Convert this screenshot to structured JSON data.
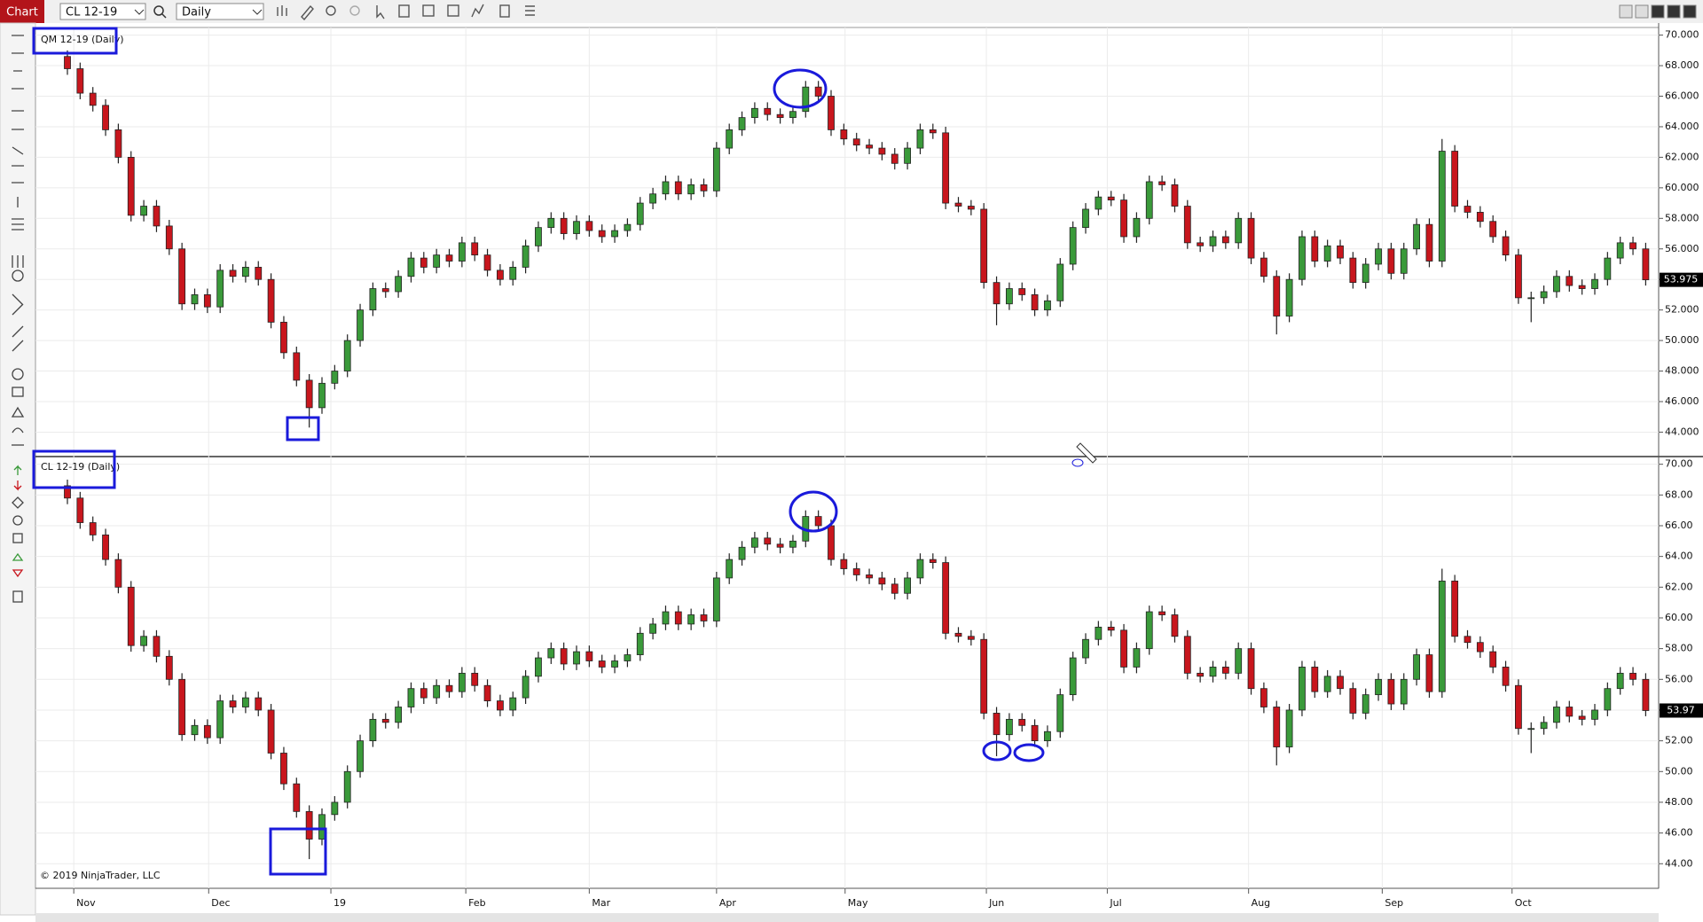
{
  "toolbar": {
    "tab": "Chart",
    "instrument": "CL 12-19",
    "period": "Daily"
  },
  "copyright": "© 2019 NinjaTrader, LLC",
  "chart_data": [
    {
      "type": "candlestick",
      "title": "QM 12-19 (Daily)",
      "up_color": "#3a9a3a",
      "down_color": "#c8161d",
      "grid": true,
      "ylim": [
        42.4,
        70.5
      ],
      "yticks": [
        {
          "value": 44,
          "label": "44.000"
        },
        {
          "value": 46,
          "label": "46.000"
        },
        {
          "value": 48,
          "label": "48.000"
        },
        {
          "value": 50,
          "label": "50.000"
        },
        {
          "value": 52,
          "label": "52.000"
        },
        {
          "value": 54,
          "label": "54.000"
        },
        {
          "value": 56,
          "label": "56.000"
        },
        {
          "value": 58,
          "label": "58.000"
        },
        {
          "value": 60,
          "label": "60.000"
        },
        {
          "value": 62,
          "label": "62.000"
        },
        {
          "value": 64,
          "label": "64.000"
        },
        {
          "value": 66,
          "label": "66.000"
        },
        {
          "value": 68,
          "label": "68.000"
        },
        {
          "value": 70,
          "label": "70.000"
        }
      ],
      "open": [
        68.6,
        67.8,
        66.2,
        65.4,
        63.8,
        62.0,
        58.2,
        58.8,
        57.5,
        56.0,
        52.4,
        53.0,
        52.2,
        54.6,
        54.2,
        54.8,
        54.0,
        51.2,
        49.2,
        47.4,
        45.6,
        47.2,
        48.0,
        50.0,
        52.0,
        53.4,
        53.2,
        54.2,
        55.4,
        54.8,
        55.6,
        55.2,
        56.4,
        55.6,
        54.6,
        54.0,
        54.8,
        56.2,
        57.4,
        58.0,
        57.0,
        57.8,
        57.2,
        56.8,
        57.2,
        57.6,
        59.0,
        59.6,
        60.4,
        59.6,
        60.2,
        59.8,
        62.6,
        63.8,
        64.6,
        65.2,
        64.8,
        64.6,
        65.0,
        66.6,
        66.0,
        63.8,
        63.2,
        62.8,
        62.6,
        62.2,
        61.6,
        62.6,
        63.8,
        63.6,
        59.0,
        58.8,
        58.6,
        53.8,
        52.4,
        53.4,
        53.0,
        52.0,
        52.6,
        55.0,
        57.4,
        58.6,
        59.4,
        59.2,
        56.8,
        58.0,
        60.4,
        60.2,
        58.8,
        56.4,
        56.2,
        56.8,
        56.4,
        58.0,
        55.4,
        54.2,
        51.6,
        54.0,
        56.8,
        55.2,
        56.2,
        55.4,
        53.8,
        55.0,
        56.0,
        54.4,
        56.0,
        57.6,
        55.2,
        62.4,
        58.8,
        58.4,
        57.8,
        56.8,
        55.6,
        52.8,
        52.8,
        53.2,
        54.2,
        53.6,
        53.4,
        54.0,
        55.4,
        56.4,
        56.0
      ],
      "high": [
        69.0,
        68.2,
        66.6,
        65.8,
        64.2,
        62.4,
        59.2,
        59.2,
        57.9,
        56.4,
        53.4,
        53.4,
        55.0,
        55.0,
        55.2,
        55.2,
        54.4,
        51.6,
        49.6,
        47.8,
        47.6,
        48.4,
        50.4,
        52.4,
        53.8,
        53.8,
        54.6,
        55.8,
        55.8,
        56.0,
        56.0,
        56.8,
        56.8,
        56.0,
        55.0,
        55.2,
        56.6,
        57.8,
        58.4,
        58.4,
        58.2,
        58.2,
        57.6,
        57.6,
        58.0,
        59.4,
        60.0,
        60.8,
        60.8,
        60.6,
        60.6,
        63.0,
        64.2,
        65.0,
        65.6,
        65.6,
        65.2,
        65.4,
        67.0,
        67.0,
        66.4,
        64.2,
        63.6,
        63.2,
        63.0,
        62.6,
        63.0,
        64.2,
        64.2,
        64.0,
        59.4,
        59.2,
        59.0,
        54.2,
        53.8,
        53.8,
        53.4,
        53.0,
        55.4,
        57.8,
        59.0,
        59.8,
        59.8,
        59.6,
        58.4,
        60.8,
        60.8,
        60.6,
        59.2,
        56.8,
        57.2,
        57.2,
        58.4,
        58.4,
        55.8,
        54.6,
        54.4,
        57.2,
        57.2,
        56.6,
        56.6,
        55.8,
        55.4,
        56.4,
        56.4,
        56.4,
        58.0,
        58.0,
        63.2,
        62.8,
        59.2,
        58.8,
        58.2,
        57.2,
        56.0,
        53.2,
        53.6,
        54.6,
        54.6,
        54.0,
        54.4,
        55.8,
        56.8,
        56.8,
        56.4
      ],
      "low": [
        67.4,
        65.8,
        65.0,
        63.4,
        61.6,
        57.8,
        57.8,
        57.1,
        55.6,
        52.0,
        52.0,
        51.8,
        51.8,
        53.8,
        53.8,
        53.6,
        50.8,
        48.8,
        47.0,
        44.3,
        45.2,
        46.8,
        47.6,
        49.6,
        51.6,
        52.8,
        52.8,
        53.8,
        54.4,
        54.4,
        54.8,
        54.8,
        55.2,
        54.2,
        53.6,
        53.6,
        54.4,
        55.8,
        57.0,
        56.6,
        56.6,
        56.8,
        56.4,
        56.4,
        56.8,
        57.2,
        58.6,
        59.2,
        59.2,
        59.2,
        59.4,
        59.4,
        62.2,
        63.4,
        64.2,
        64.4,
        64.2,
        64.2,
        64.6,
        65.6,
        63.4,
        62.8,
        62.4,
        62.2,
        61.8,
        61.2,
        61.2,
        62.2,
        63.2,
        58.6,
        58.4,
        58.2,
        53.4,
        51.0,
        52.0,
        52.6,
        51.6,
        51.6,
        52.2,
        54.6,
        57.0,
        58.2,
        58.8,
        56.4,
        56.4,
        57.6,
        59.8,
        58.4,
        56.0,
        55.8,
        55.8,
        56.0,
        56.0,
        55.0,
        53.8,
        50.4,
        51.2,
        53.6,
        54.8,
        54.8,
        55.0,
        53.4,
        53.4,
        54.6,
        54.0,
        54.0,
        55.6,
        54.8,
        54.8,
        58.4,
        58.0,
        57.4,
        56.4,
        55.2,
        52.4,
        51.2,
        52.4,
        52.8,
        53.2,
        53.0,
        53.0,
        53.6,
        55.0,
        55.6,
        53.6
      ],
      "close": [
        67.8,
        66.2,
        65.4,
        63.8,
        62.0,
        58.2,
        58.8,
        57.5,
        56.0,
        52.4,
        53.0,
        52.2,
        54.6,
        54.2,
        54.8,
        54.0,
        51.2,
        49.2,
        47.4,
        45.6,
        47.2,
        48.0,
        50.0,
        52.0,
        53.4,
        53.2,
        54.2,
        55.4,
        54.8,
        55.6,
        55.2,
        56.4,
        55.6,
        54.6,
        54.0,
        54.8,
        56.2,
        57.4,
        58.0,
        57.0,
        57.8,
        57.2,
        56.8,
        57.2,
        57.6,
        59.0,
        59.6,
        60.4,
        59.6,
        60.2,
        59.8,
        62.6,
        63.8,
        64.6,
        65.2,
        64.8,
        64.6,
        65.0,
        66.6,
        66.0,
        63.8,
        63.2,
        62.8,
        62.6,
        62.2,
        61.6,
        62.6,
        63.8,
        63.6,
        59.0,
        58.8,
        58.6,
        53.8,
        52.4,
        53.4,
        53.0,
        52.0,
        52.6,
        55.0,
        57.4,
        58.6,
        59.4,
        59.2,
        56.8,
        58.0,
        60.4,
        60.2,
        58.8,
        56.4,
        56.2,
        56.8,
        56.4,
        58.0,
        55.4,
        54.2,
        51.6,
        54.0,
        56.8,
        55.2,
        56.2,
        55.4,
        53.8,
        55.0,
        56.0,
        54.4,
        56.0,
        57.6,
        55.2,
        62.4,
        58.8,
        58.4,
        57.8,
        56.8,
        55.6,
        52.8,
        52.8,
        53.2,
        54.2,
        53.6,
        53.4,
        54.0,
        55.4,
        56.4,
        56.0,
        53.975
      ]
    },
    {
      "type": "candlestick",
      "title": "CL 12-19 (Daily)",
      "up_color": "#3a9a3a",
      "down_color": "#c8161d",
      "grid": true,
      "ylim": [
        42.4,
        70.5
      ],
      "yticks": [
        {
          "value": 44,
          "label": "44.00"
        },
        {
          "value": 46,
          "label": "46.00"
        },
        {
          "value": 48,
          "label": "48.00"
        },
        {
          "value": 50,
          "label": "50.00"
        },
        {
          "value": 52,
          "label": "52.00"
        },
        {
          "value": 54,
          "label": "54.00"
        },
        {
          "value": 56,
          "label": "56.00"
        },
        {
          "value": 58,
          "label": "58.00"
        },
        {
          "value": 60,
          "label": "60.00"
        },
        {
          "value": 62,
          "label": "62.00"
        },
        {
          "value": 64,
          "label": "64.00"
        },
        {
          "value": 66,
          "label": "66.00"
        },
        {
          "value": 68,
          "label": "68.00"
        },
        {
          "value": 70,
          "label": "70.00"
        }
      ],
      "xticks": [
        {
          "value": 0.5,
          "label": "Nov"
        },
        {
          "value": 11.1,
          "label": "Dec"
        },
        {
          "value": 20.7,
          "label": "19"
        },
        {
          "value": 31.3,
          "label": "Feb"
        },
        {
          "value": 41,
          "label": "Mar"
        },
        {
          "value": 51,
          "label": "Apr"
        },
        {
          "value": 61.1,
          "label": "May"
        },
        {
          "value": 72.2,
          "label": "Jun"
        },
        {
          "value": 81.7,
          "label": "Jul"
        },
        {
          "value": 92.8,
          "label": "Aug"
        },
        {
          "value": 103.3,
          "label": "Sep"
        },
        {
          "value": 113.5,
          "label": "Oct"
        }
      ],
      "open": [
        68.6,
        67.8,
        66.2,
        65.4,
        63.8,
        62.0,
        58.2,
        58.8,
        57.5,
        56.0,
        52.4,
        53.0,
        52.2,
        54.6,
        54.2,
        54.8,
        54.0,
        51.2,
        49.2,
        47.4,
        45.6,
        47.2,
        48.0,
        50.0,
        52.0,
        53.4,
        53.2,
        54.2,
        55.4,
        54.8,
        55.6,
        55.2,
        56.4,
        55.6,
        54.6,
        54.0,
        54.8,
        56.2,
        57.4,
        58.0,
        57.0,
        57.8,
        57.2,
        56.8,
        57.2,
        57.6,
        59.0,
        59.6,
        60.4,
        59.6,
        60.2,
        59.8,
        62.6,
        63.8,
        64.6,
        65.2,
        64.8,
        64.6,
        65.0,
        66.6,
        66.0,
        63.8,
        63.2,
        62.8,
        62.6,
        62.2,
        61.6,
        62.6,
        63.8,
        63.6,
        59.0,
        58.8,
        58.6,
        53.8,
        52.4,
        53.4,
        53.0,
        52.0,
        52.6,
        55.0,
        57.4,
        58.6,
        59.4,
        59.2,
        56.8,
        58.0,
        60.4,
        60.2,
        58.8,
        56.4,
        56.2,
        56.8,
        56.4,
        58.0,
        55.4,
        54.2,
        51.6,
        54.0,
        56.8,
        55.2,
        56.2,
        55.4,
        53.8,
        55.0,
        56.0,
        54.4,
        56.0,
        57.6,
        55.2,
        62.4,
        58.8,
        58.4,
        57.8,
        56.8,
        55.6,
        52.8,
        52.8,
        53.2,
        54.2,
        53.6,
        53.4,
        54.0,
        55.4,
        56.4,
        56.0
      ],
      "high": [
        69.0,
        68.2,
        66.6,
        65.8,
        64.2,
        62.4,
        59.2,
        59.2,
        57.9,
        56.4,
        53.4,
        53.4,
        55.0,
        55.0,
        55.2,
        55.2,
        54.4,
        51.6,
        49.6,
        47.8,
        47.6,
        48.4,
        50.4,
        52.4,
        53.8,
        53.8,
        54.6,
        55.8,
        55.8,
        56.0,
        56.0,
        56.8,
        56.8,
        56.0,
        55.0,
        55.2,
        56.6,
        57.8,
        58.4,
        58.4,
        58.2,
        58.2,
        57.6,
        57.6,
        58.0,
        59.4,
        60.0,
        60.8,
        60.8,
        60.6,
        60.6,
        63.0,
        64.2,
        65.0,
        65.6,
        65.6,
        65.2,
        65.4,
        67.0,
        67.0,
        66.4,
        64.2,
        63.6,
        63.2,
        63.0,
        62.6,
        63.0,
        64.2,
        64.2,
        64.0,
        59.4,
        59.2,
        59.0,
        54.2,
        53.8,
        53.8,
        53.4,
        53.0,
        55.4,
        57.8,
        59.0,
        59.8,
        59.8,
        59.6,
        58.4,
        60.8,
        60.8,
        60.6,
        59.2,
        56.8,
        57.2,
        57.2,
        58.4,
        58.4,
        55.8,
        54.6,
        54.4,
        57.2,
        57.2,
        56.6,
        56.6,
        55.8,
        55.4,
        56.4,
        56.4,
        56.4,
        58.0,
        58.0,
        63.2,
        62.8,
        59.2,
        58.8,
        58.2,
        57.2,
        56.0,
        53.2,
        53.6,
        54.6,
        54.6,
        54.0,
        54.4,
        55.8,
        56.8,
        56.8,
        56.4
      ],
      "low": [
        67.4,
        65.8,
        65.0,
        63.4,
        61.6,
        57.8,
        57.8,
        57.1,
        55.6,
        52.0,
        52.0,
        51.8,
        51.8,
        53.8,
        53.8,
        53.6,
        50.8,
        48.8,
        47.0,
        44.3,
        45.2,
        46.8,
        47.6,
        49.6,
        51.6,
        52.8,
        52.8,
        53.8,
        54.4,
        54.4,
        54.8,
        54.8,
        55.2,
        54.2,
        53.6,
        53.6,
        54.4,
        55.8,
        57.0,
        56.6,
        56.6,
        56.8,
        56.4,
        56.4,
        56.8,
        57.2,
        58.6,
        59.2,
        59.2,
        59.2,
        59.4,
        59.4,
        62.2,
        63.4,
        64.2,
        64.4,
        64.2,
        64.2,
        64.6,
        65.6,
        63.4,
        62.8,
        62.4,
        62.2,
        61.8,
        61.2,
        61.2,
        62.2,
        63.2,
        58.6,
        58.4,
        58.2,
        53.4,
        51.0,
        52.0,
        52.6,
        51.6,
        51.6,
        52.2,
        54.6,
        57.0,
        58.2,
        58.8,
        56.4,
        56.4,
        57.6,
        59.8,
        58.4,
        56.0,
        55.8,
        55.8,
        56.0,
        56.0,
        55.0,
        53.8,
        50.4,
        51.2,
        53.6,
        54.8,
        54.8,
        55.0,
        53.4,
        53.4,
        54.6,
        54.0,
        54.0,
        55.6,
        54.8,
        54.8,
        58.4,
        58.0,
        57.4,
        56.4,
        55.2,
        52.4,
        51.2,
        52.4,
        52.8,
        53.2,
        53.0,
        53.0,
        53.6,
        55.0,
        55.6,
        53.6
      ],
      "close": [
        67.8,
        66.2,
        65.4,
        63.8,
        62.0,
        58.2,
        58.8,
        57.5,
        56.0,
        52.4,
        53.0,
        52.2,
        54.6,
        54.2,
        54.8,
        54.0,
        51.2,
        49.2,
        47.4,
        45.6,
        47.2,
        48.0,
        50.0,
        52.0,
        53.4,
        53.2,
        54.2,
        55.4,
        54.8,
        55.6,
        55.2,
        56.4,
        55.6,
        54.6,
        54.0,
        54.8,
        56.2,
        57.4,
        58.0,
        57.0,
        57.8,
        57.2,
        56.8,
        57.2,
        57.6,
        59.0,
        59.6,
        60.4,
        59.6,
        60.2,
        59.8,
        62.6,
        63.8,
        64.6,
        65.2,
        64.8,
        64.6,
        65.0,
        66.6,
        66.0,
        63.8,
        63.2,
        62.8,
        62.6,
        62.2,
        61.6,
        62.6,
        63.8,
        63.6,
        59.0,
        58.8,
        58.6,
        53.8,
        52.4,
        53.4,
        53.0,
        52.0,
        52.6,
        55.0,
        57.4,
        58.6,
        59.4,
        59.2,
        56.8,
        58.0,
        60.4,
        60.2,
        58.8,
        56.4,
        56.2,
        56.8,
        56.4,
        58.0,
        55.4,
        54.2,
        51.6,
        54.0,
        56.8,
        55.2,
        56.2,
        55.4,
        53.8,
        55.0,
        56.0,
        54.4,
        56.0,
        57.6,
        55.2,
        62.4,
        58.8,
        58.4,
        57.8,
        56.8,
        55.6,
        52.8,
        52.8,
        53.2,
        54.2,
        53.6,
        53.4,
        54.0,
        55.4,
        56.4,
        56.0,
        53.97
      ]
    }
  ]
}
